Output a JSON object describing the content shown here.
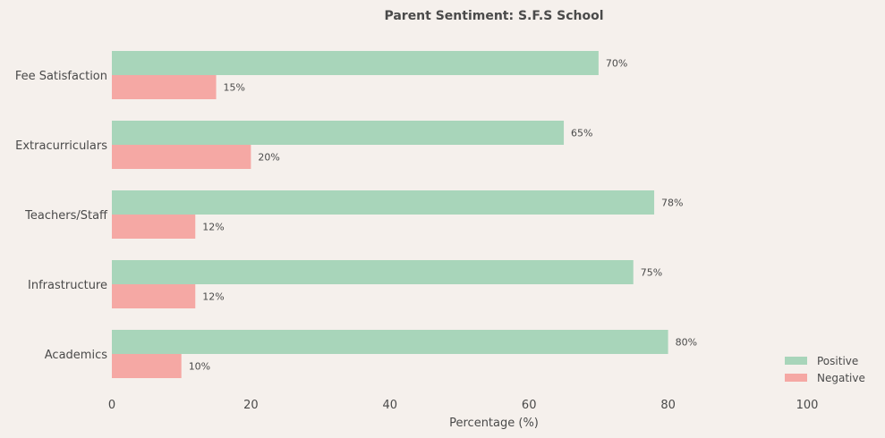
{
  "chart_data": {
    "type": "bar",
    "orientation": "horizontal",
    "title": "Parent Sentiment: S.F.S School",
    "xlabel": "Percentage (%)",
    "ylabel": "",
    "xlim": [
      0,
      100
    ],
    "xticks": [
      "0",
      "20",
      "40",
      "60",
      "80",
      "100"
    ],
    "categories": [
      "Fee Satisfaction",
      "Extracurriculars",
      "Teachers/Staff",
      "Infrastructure",
      "Academics"
    ],
    "series": [
      {
        "name": "Positive",
        "color": "#a8d5ba",
        "values": [
          70,
          65,
          78,
          75,
          80
        ],
        "labels": [
          "70%",
          "65%",
          "78%",
          "75%",
          "80%"
        ]
      },
      {
        "name": "Negative",
        "color": "#f5a8a4",
        "values": [
          15,
          20,
          12,
          12,
          10
        ],
        "labels": [
          "15%",
          "20%",
          "12%",
          "12%",
          "10%"
        ]
      }
    ],
    "legend_position": "bottom-right",
    "grid": false
  },
  "colors": {
    "background": "#f5f0ec",
    "text": "#4a4a4a"
  }
}
